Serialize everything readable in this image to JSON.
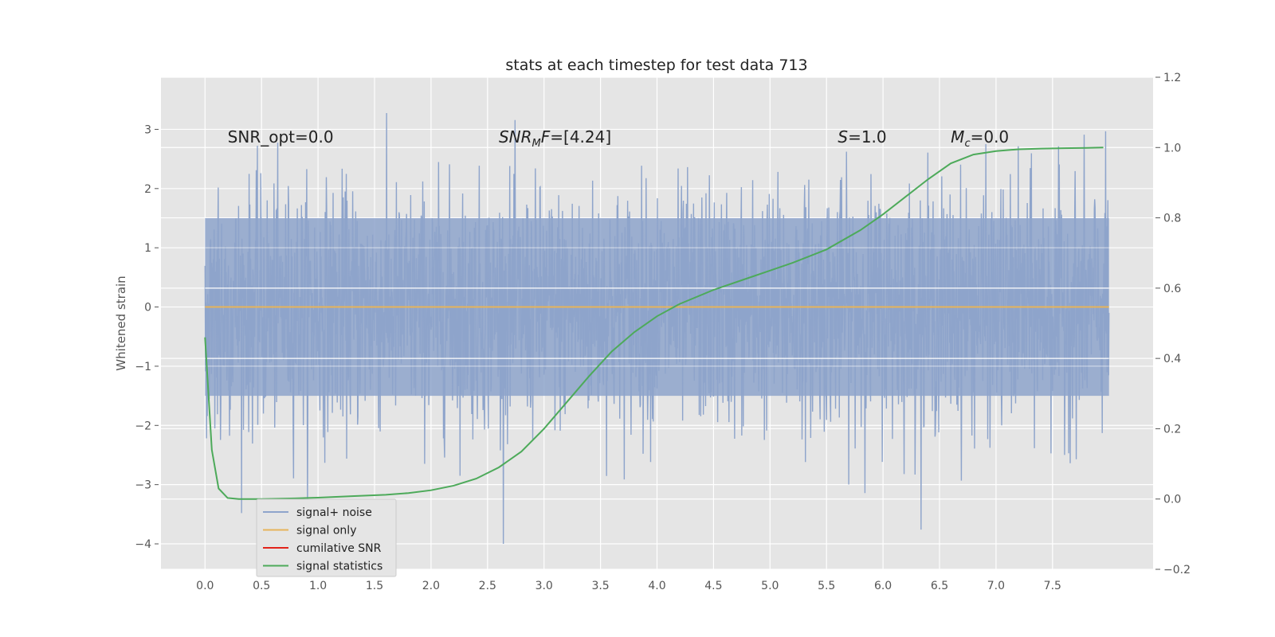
{
  "chart_data": {
    "type": "line",
    "title": "stats at each timestep for test data 713",
    "xlabel": "",
    "ylabel": "Whitened strain",
    "xlim": [
      -0.39,
      8.39
    ],
    "ylim": [
      -4.43,
      3.88
    ],
    "y2lim": [
      -0.2,
      1.2
    ],
    "x_ticks": [
      "0.0",
      "0.5",
      "1.0",
      "1.5",
      "2.0",
      "2.5",
      "3.0",
      "3.5",
      "4.0",
      "4.5",
      "5.0",
      "5.5",
      "6.0",
      "6.5",
      "7.0",
      "7.5"
    ],
    "y_ticks": [
      "3",
      "2",
      "1",
      "0",
      "−1",
      "−2",
      "−3",
      "−4"
    ],
    "y2_ticks": [
      "1.2",
      "1.0",
      "0.8",
      "0.6",
      "0.4",
      "0.2",
      "0.0",
      "−0.2"
    ],
    "grid": true,
    "legend_position": "lower-left",
    "annotations": [
      {
        "text": "SNR_opt=0.0",
        "x": 0.2,
        "y": 2.78
      },
      {
        "text": "SNR_MF=[4.24]",
        "x": 2.6,
        "y": 2.78
      },
      {
        "text": "S=1.0",
        "x": 5.6,
        "y": 2.78
      },
      {
        "text": "M_c=0.0",
        "x": 6.6,
        "y": 2.78
      }
    ],
    "noise_trace": {
      "x_range": [
        0.0,
        8.0
      ],
      "typical_band": [
        -1.5,
        1.5
      ],
      "min": -4.0,
      "max": 3.55
    },
    "series": [
      {
        "name": "signal+ noise",
        "color": "#8ea4cb",
        "axis": "left",
        "style": "noise"
      },
      {
        "name": "signal only",
        "color": "#e6b45a",
        "axis": "left",
        "x": [
          0.0,
          8.0
        ],
        "values": [
          0.0,
          0.0
        ]
      },
      {
        "name": "cumilative SNR",
        "color": "#e2231a",
        "axis": "right",
        "x": [],
        "values": []
      },
      {
        "name": "signal statistics",
        "color": "#4daa5a",
        "axis": "right",
        "x": [
          0.0,
          0.06,
          0.12,
          0.2,
          0.3,
          0.5,
          0.8,
          1.0,
          1.3,
          1.6,
          1.8,
          2.0,
          2.2,
          2.4,
          2.6,
          2.8,
          3.0,
          3.2,
          3.4,
          3.6,
          3.8,
          4.0,
          4.2,
          4.5,
          4.8,
          5.0,
          5.2,
          5.5,
          5.8,
          6.0,
          6.2,
          6.4,
          6.6,
          6.8,
          7.0,
          7.2,
          7.4,
          7.6,
          7.8,
          7.95
        ],
        "values": [
          0.46,
          0.14,
          0.03,
          0.003,
          0.0,
          0.0,
          0.002,
          0.004,
          0.008,
          0.012,
          0.017,
          0.025,
          0.038,
          0.058,
          0.09,
          0.135,
          0.2,
          0.275,
          0.35,
          0.42,
          0.475,
          0.52,
          0.555,
          0.595,
          0.628,
          0.65,
          0.672,
          0.71,
          0.765,
          0.81,
          0.86,
          0.91,
          0.955,
          0.98,
          0.99,
          0.995,
          0.997,
          0.998,
          0.999,
          1.0
        ]
      }
    ]
  },
  "legend": {
    "items": [
      {
        "label": "signal+ noise",
        "color": "#8ea4cb"
      },
      {
        "label": "signal only",
        "color": "#e6b45a"
      },
      {
        "label": "cumilative SNR",
        "color": "#e2231a"
      },
      {
        "label": "signal statistics",
        "color": "#4daa5a"
      }
    ]
  },
  "colors": {
    "plot_background": "#e5e5e5",
    "grid": "#ffffff"
  }
}
